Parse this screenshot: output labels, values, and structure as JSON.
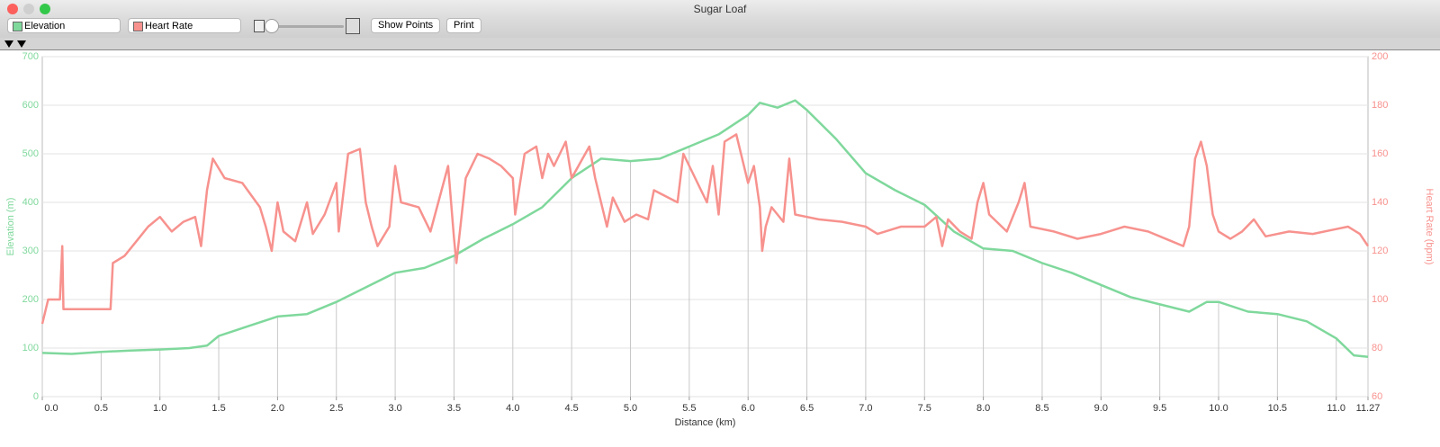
{
  "window": {
    "title": "Sugar Loaf",
    "buttons": [
      "Show Points",
      "Print"
    ]
  },
  "chart_data": {
    "type": "line",
    "xlabel": "Distance (km)",
    "ylabel": "Elevation (m)",
    "y2label": "Heart Rate (bpm)",
    "xlim": [
      0,
      11.27
    ],
    "xticks": [
      {
        "value": 0,
        "label": "0.0"
      },
      0.5,
      {
        "value": 1,
        "label": "1.0"
      },
      1.5,
      {
        "value": 2,
        "label": "2.0"
      },
      2.5,
      {
        "value": 3,
        "label": "3.0"
      },
      3.5,
      {
        "value": 4,
        "label": "4.0"
      },
      4.5,
      {
        "value": 5,
        "label": "5.0"
      },
      5.5,
      {
        "value": 6,
        "label": "6.0"
      },
      6.5,
      {
        "value": 7,
        "label": "7.0"
      },
      7.5,
      {
        "value": 8,
        "label": "8.0"
      },
      8.5,
      {
        "value": 9,
        "label": "9.0"
      },
      9.5,
      {
        "value": 10,
        "label": "10.0"
      },
      10.5,
      {
        "value": 11,
        "label": "11.0"
      },
      11.27
    ],
    "ylim": [
      0,
      700
    ],
    "yticks": [
      0,
      100,
      200,
      300,
      400,
      500,
      600,
      700
    ],
    "y2lim": [
      60,
      200
    ],
    "y2ticks": [
      60,
      80,
      100,
      120,
      140,
      160,
      180,
      200
    ],
    "grid": true,
    "series": [
      {
        "name": "Elevation",
        "color": "#7fd89c",
        "x": [
          0,
          0.25,
          0.5,
          0.75,
          1.0,
          1.25,
          1.4,
          1.5,
          1.75,
          2.0,
          2.25,
          2.5,
          2.75,
          3.0,
          3.25,
          3.5,
          3.75,
          4.0,
          4.25,
          4.5,
          4.75,
          5.0,
          5.25,
          5.5,
          5.75,
          6.0,
          6.1,
          6.25,
          6.4,
          6.5,
          6.75,
          7.0,
          7.25,
          7.5,
          7.75,
          8.0,
          8.25,
          8.5,
          8.75,
          9.0,
          9.25,
          9.5,
          9.75,
          9.9,
          10.0,
          10.25,
          10.5,
          10.75,
          11.0,
          11.15,
          11.27
        ],
        "values": [
          90,
          88,
          92,
          95,
          97,
          100,
          105,
          125,
          145,
          165,
          170,
          195,
          225,
          255,
          265,
          290,
          325,
          355,
          390,
          450,
          490,
          485,
          490,
          515,
          540,
          580,
          605,
          595,
          610,
          590,
          530,
          460,
          425,
          395,
          340,
          305,
          300,
          275,
          255,
          230,
          205,
          190,
          175,
          195,
          195,
          175,
          170,
          155,
          120,
          85,
          82
        ]
      },
      {
        "name": "Heart Rate",
        "color": "#f7928e",
        "axis": "y2",
        "x": [
          0,
          0.05,
          0.15,
          0.17,
          0.18,
          0.5,
          0.58,
          0.6,
          0.7,
          0.8,
          0.9,
          1.0,
          1.1,
          1.2,
          1.3,
          1.35,
          1.4,
          1.45,
          1.55,
          1.7,
          1.85,
          1.9,
          1.95,
          2.0,
          2.05,
          2.15,
          2.25,
          2.3,
          2.4,
          2.5,
          2.52,
          2.6,
          2.7,
          2.75,
          2.8,
          2.85,
          2.95,
          3.0,
          3.05,
          3.2,
          3.3,
          3.45,
          3.5,
          3.52,
          3.6,
          3.7,
          3.8,
          3.9,
          4.0,
          4.02,
          4.1,
          4.2,
          4.25,
          4.3,
          4.35,
          4.45,
          4.5,
          4.65,
          4.7,
          4.8,
          4.85,
          4.95,
          5.05,
          5.15,
          5.2,
          5.4,
          5.45,
          5.55,
          5.65,
          5.7,
          5.75,
          5.8,
          5.9,
          6.0,
          6.05,
          6.1,
          6.12,
          6.15,
          6.2,
          6.3,
          6.35,
          6.4,
          6.6,
          6.8,
          7.0,
          7.1,
          7.3,
          7.5,
          7.6,
          7.65,
          7.7,
          7.8,
          7.9,
          7.95,
          8.0,
          8.05,
          8.2,
          8.3,
          8.35,
          8.4,
          8.6,
          8.8,
          9.0,
          9.2,
          9.4,
          9.6,
          9.7,
          9.75,
          9.8,
          9.85,
          9.9,
          9.95,
          10.0,
          10.1,
          10.2,
          10.3,
          10.4,
          10.6,
          10.8,
          11.0,
          11.1,
          11.2,
          11.27
        ],
        "values": [
          90,
          100,
          100,
          122,
          96,
          96,
          96,
          115,
          118,
          124,
          130,
          134,
          128,
          132,
          134,
          122,
          145,
          158,
          150,
          148,
          138,
          130,
          120,
          140,
          128,
          124,
          140,
          127,
          135,
          148,
          128,
          160,
          162,
          140,
          130,
          122,
          130,
          155,
          140,
          138,
          128,
          155,
          125,
          115,
          150,
          160,
          158,
          155,
          150,
          135,
          160,
          163,
          150,
          160,
          155,
          165,
          150,
          163,
          150,
          130,
          142,
          132,
          135,
          133,
          145,
          140,
          160,
          150,
          140,
          155,
          135,
          165,
          168,
          148,
          155,
          138,
          120,
          130,
          138,
          132,
          158,
          135,
          133,
          132,
          130,
          127,
          130,
          130,
          134,
          122,
          133,
          128,
          125,
          140,
          148,
          135,
          128,
          140,
          148,
          130,
          128,
          125,
          127,
          130,
          128,
          124,
          122,
          130,
          158,
          165,
          155,
          135,
          128,
          125,
          128,
          133,
          126,
          128,
          127,
          129,
          130,
          127,
          122
        ]
      }
    ]
  }
}
